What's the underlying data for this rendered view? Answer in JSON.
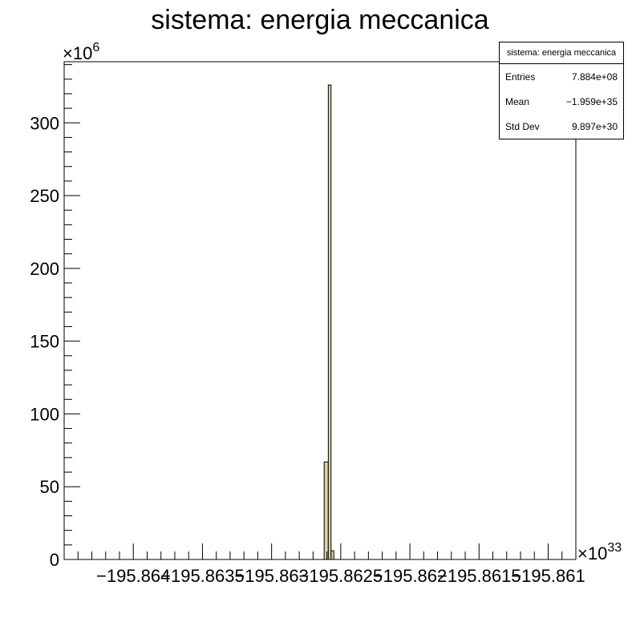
{
  "chart_data": {
    "type": "bar",
    "title": "sistema: energia meccanica",
    "xlabel": "",
    "ylabel": "",
    "x_multiplier": "×10",
    "x_multiplier_exp": "33",
    "y_multiplier": "×10",
    "y_multiplier_exp": "6",
    "x_tick_labels": [
      "−195.864",
      "−195.8635",
      "−195.863",
      "−195.8625",
      "−195.862",
      "−195.8615",
      "−195.861"
    ],
    "x_tick_values": [
      -195.864,
      -195.8635,
      -195.863,
      -195.8625,
      -195.862,
      -195.8615,
      -195.861
    ],
    "xlim": [
      -195.8645,
      -195.8608
    ],
    "ylim": [
      0,
      342
    ],
    "y_ticks": [
      0,
      50,
      100,
      150,
      200,
      250,
      300
    ],
    "y_tick_labels": [
      "0",
      "50",
      "100",
      "150",
      "200",
      "250",
      "300"
    ],
    "bins": [
      {
        "x0": -195.86262,
        "x1": -195.86259,
        "value": 67
      },
      {
        "x0": -195.86259,
        "x1": -195.86257,
        "value": 326
      },
      {
        "x0": -195.86257,
        "x1": -195.86255,
        "value": 6
      }
    ],
    "fill_color": "#d8d4a0",
    "line_color": "#000000"
  },
  "stats": {
    "title": "sistema: energia meccanica",
    "rows": [
      {
        "label": "Entries",
        "value": "7.884e+08"
      },
      {
        "label": "Mean",
        "value": "−1.959e+35"
      },
      {
        "label": "Std Dev",
        "value": "9.897e+30"
      }
    ]
  }
}
